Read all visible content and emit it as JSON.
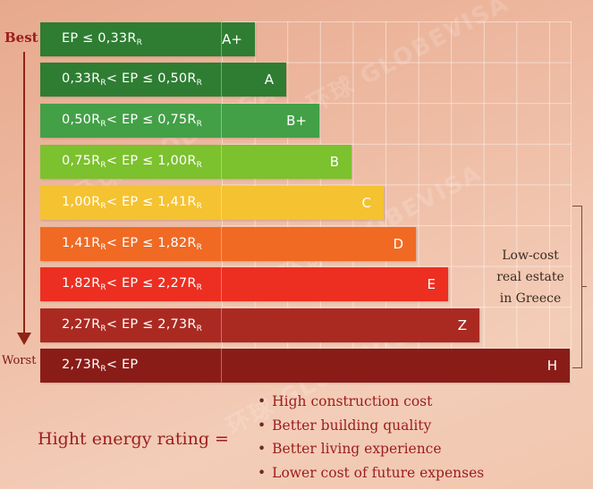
{
  "labels": {
    "best": "Best",
    "worst": "Worst"
  },
  "bars": [
    {
      "ep": [
        "EP ≤ 0,33R",
        "R"
      ],
      "letter": "A+",
      "color": "#2e7d32"
    },
    {
      "ep": [
        "0,33R",
        "R",
        "< EP ≤ 0,50R",
        "R"
      ],
      "letter": "A",
      "color": "#2e7d32"
    },
    {
      "ep": [
        "0,50R",
        "R",
        "< EP ≤ 0,75R",
        "R"
      ],
      "letter": "B+",
      "color": "#43a047"
    },
    {
      "ep": [
        "0,75R",
        "R",
        "< EP ≤ 1,00R",
        "R"
      ],
      "letter": "B",
      "color": "#7cc12e"
    },
    {
      "ep": [
        "1,00R",
        "R",
        "< EP ≤ 1,41R",
        "R"
      ],
      "letter": "C",
      "color": "#f5c231"
    },
    {
      "ep": [
        "1,41R",
        "R",
        "< EP ≤ 1,82R",
        "R"
      ],
      "letter": "D",
      "color": "#f06a24"
    },
    {
      "ep": [
        "1,82R",
        "R",
        "< EP ≤ 2,27R",
        "R"
      ],
      "letter": "E",
      "color": "#ec2f21"
    },
    {
      "ep": [
        "2,27R",
        "R",
        "< EP ≤ 2,73R",
        "R"
      ],
      "letter": "Z",
      "color": "#aa2a22"
    },
    {
      "ep": [
        "2,73R",
        "R",
        "< EP"
      ],
      "letter": "H",
      "color": "#8a1c18"
    }
  ],
  "side_note": [
    "Low-cost",
    "real estate",
    "in Greece"
  ],
  "rating_label": "Hight energy rating =",
  "benefits": [
    "High construction cost",
    "Better building quality",
    "Better living experience",
    "Lower cost of future expenses"
  ],
  "watermark": [
    "环球",
    "GLOBEVISA"
  ]
}
